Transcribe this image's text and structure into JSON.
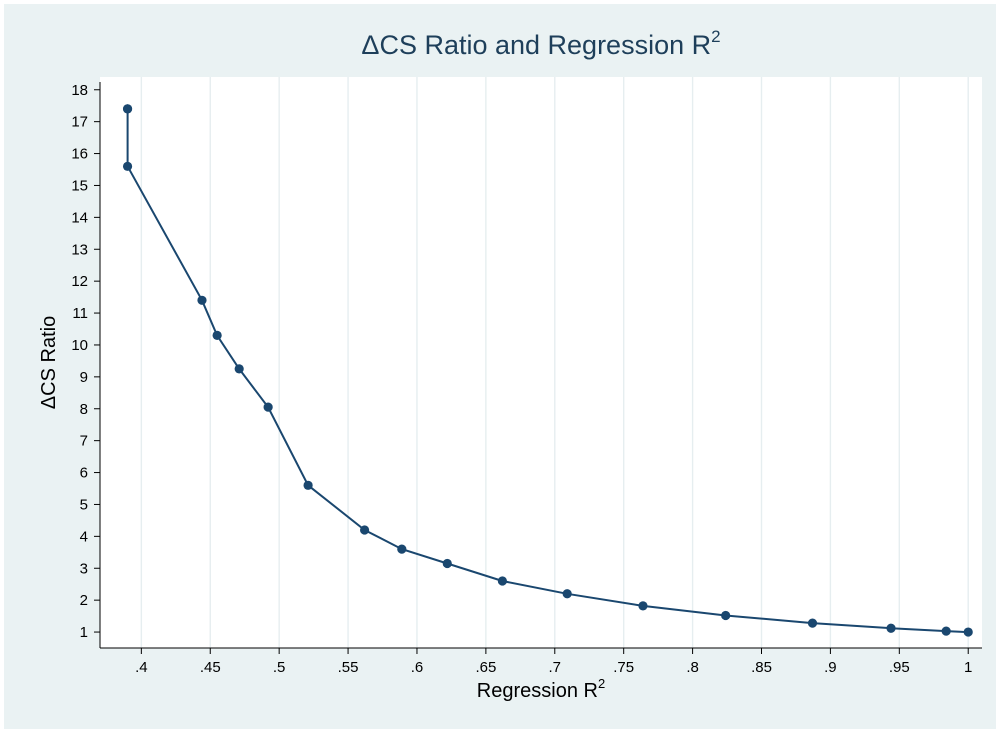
{
  "chart_data": {
    "type": "line",
    "title": "ΔCS Ratio and Regression R",
    "title_superscript": "2",
    "xlabel": "Regression R",
    "xlabel_superscript": "2",
    "ylabel": "ΔCS Ratio",
    "xlim": [
      0.37,
      1.01
    ],
    "ylim": [
      0.5,
      18.4
    ],
    "x_ticks": [
      0.4,
      0.45,
      0.5,
      0.55,
      0.6,
      0.65,
      0.7,
      0.75,
      0.8,
      0.85,
      0.9,
      0.95,
      1.0
    ],
    "x_tick_labels": [
      ".4",
      ".45",
      ".5",
      ".55",
      ".6",
      ".65",
      ".7",
      ".75",
      ".8",
      ".85",
      ".9",
      ".95",
      "1"
    ],
    "y_ticks": [
      1,
      2,
      3,
      4,
      5,
      6,
      7,
      8,
      9,
      10,
      11,
      12,
      13,
      14,
      15,
      16,
      17,
      18
    ],
    "y_tick_labels": [
      "1",
      "2",
      "3",
      "4",
      "5",
      "6",
      "7",
      "8",
      "9",
      "10",
      "11",
      "12",
      "13",
      "14",
      "15",
      "16",
      "17",
      "18"
    ],
    "grid": "vertical",
    "series": [
      {
        "x": [
          0.39,
          0.39,
          0.39,
          0.444,
          0.455,
          0.471,
          0.492,
          0.521,
          0.562,
          0.589,
          0.622,
          0.662,
          0.709,
          0.764,
          0.824,
          0.887,
          0.944,
          0.984,
          1.0
        ],
        "y": [
          17.4,
          17.4,
          15.6,
          11.4,
          10.3,
          9.25,
          8.05,
          5.6,
          4.2,
          3.6,
          3.15,
          2.6,
          2.2,
          1.82,
          1.52,
          1.28,
          1.12,
          1.03,
          1.0
        ]
      }
    ]
  },
  "colors": {
    "background": "#eaf2f3",
    "plot_area": "#ffffff",
    "series": "#1a476f",
    "grid": "#e6eef0",
    "title": "#1e3f5a"
  }
}
